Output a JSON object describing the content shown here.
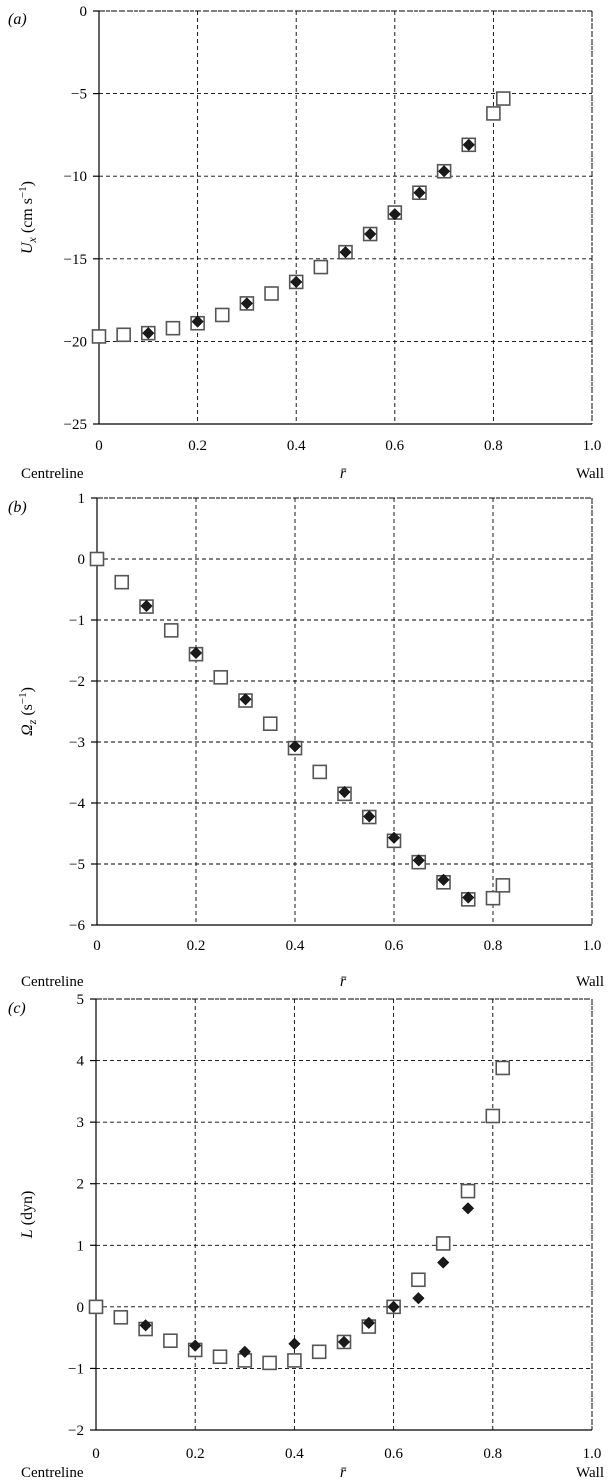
{
  "chart_data": [
    {
      "type": "scatter",
      "panel_label": "(a)",
      "ylabel": "U_x (cm s^-1)",
      "xlabel": "r̄",
      "x_left_text": "Centreline",
      "x_right_text": "Wall",
      "xlim": [
        0,
        1.0
      ],
      "ylim": [
        -25,
        0
      ],
      "xticks": [
        0,
        0.2,
        0.4,
        0.6,
        0.8,
        1.0
      ],
      "xtick_labels": [
        "0",
        "0.2",
        "0.4",
        "0.6",
        "0.8",
        "1.0"
      ],
      "yticks": [
        0,
        -5,
        -10,
        -15,
        -20,
        -25
      ],
      "ytick_labels": [
        "0",
        "−5",
        "−10",
        "−15",
        "−20",
        "−25"
      ],
      "grid": true,
      "series": [
        {
          "marker": "open-square",
          "color": "#000000",
          "x": [
            0,
            0.05,
            0.1,
            0.15,
            0.2,
            0.25,
            0.3,
            0.35,
            0.4,
            0.45,
            0.5,
            0.55,
            0.6,
            0.65,
            0.7,
            0.75,
            0.8,
            0.82
          ],
          "y": [
            -19.7,
            -19.6,
            -19.5,
            -19.2,
            -18.9,
            -18.4,
            -17.7,
            -17.1,
            -16.4,
            -15.5,
            -14.6,
            -13.5,
            -12.2,
            -11.0,
            -9.7,
            -8.1,
            -6.2,
            -5.3
          ]
        },
        {
          "marker": "filled-diamond",
          "color": "#000000",
          "x": [
            0.1,
            0.2,
            0.3,
            0.4,
            0.5,
            0.55,
            0.6,
            0.65,
            0.7,
            0.75
          ],
          "y": [
            -19.5,
            -18.8,
            -17.7,
            -16.4,
            -14.6,
            -13.5,
            -12.3,
            -11.0,
            -9.7,
            -8.1
          ]
        }
      ]
    },
    {
      "type": "scatter",
      "panel_label": "(b)",
      "ylabel": "Ω_z (s^-1)",
      "xlabel": "r̄",
      "x_left_text": "Centreline",
      "x_right_text": "Wall",
      "xlim": [
        0,
        1.0
      ],
      "ylim": [
        -6,
        1
      ],
      "xticks": [
        0,
        0.2,
        0.4,
        0.6,
        0.8,
        1.0
      ],
      "xtick_labels": [
        "0",
        "0.2",
        "0.4",
        "0.6",
        "0.8",
        "1.0"
      ],
      "yticks": [
        1,
        0,
        -1,
        -2,
        -3,
        -4,
        -5,
        -6
      ],
      "ytick_labels": [
        "1",
        "0",
        "−1",
        "−2",
        "−3",
        "−4",
        "−5",
        "−6"
      ],
      "grid": true,
      "series": [
        {
          "marker": "open-square",
          "color": "#000000",
          "x": [
            0,
            0.05,
            0.1,
            0.15,
            0.2,
            0.25,
            0.3,
            0.35,
            0.4,
            0.45,
            0.5,
            0.55,
            0.6,
            0.65,
            0.7,
            0.75,
            0.8,
            0.82
          ],
          "y": [
            0.0,
            -0.38,
            -0.78,
            -1.17,
            -1.56,
            -1.94,
            -2.32,
            -2.7,
            -3.1,
            -3.49,
            -3.85,
            -4.23,
            -4.62,
            -4.97,
            -5.3,
            -5.58,
            -5.56,
            -5.35
          ]
        },
        {
          "marker": "filled-diamond",
          "color": "#000000",
          "x": [
            0.1,
            0.2,
            0.3,
            0.4,
            0.5,
            0.55,
            0.6,
            0.65,
            0.7,
            0.75
          ],
          "y": [
            -0.77,
            -1.54,
            -2.3,
            -3.07,
            -3.82,
            -4.22,
            -4.57,
            -4.94,
            -5.26,
            -5.55
          ]
        }
      ]
    },
    {
      "type": "scatter",
      "panel_label": "(c)",
      "ylabel": "L (dyn)",
      "xlabel": "r̄",
      "x_left_text": "Centreline",
      "x_right_text": "Wall",
      "xlim": [
        0,
        1.0
      ],
      "ylim": [
        -2,
        5
      ],
      "xticks": [
        0,
        0.2,
        0.4,
        0.6,
        0.8,
        1.0
      ],
      "xtick_labels": [
        "0",
        "0.2",
        "0.4",
        "0.6",
        "0.8",
        "1.0"
      ],
      "yticks": [
        5,
        4,
        3,
        2,
        1,
        0,
        -1,
        -2
      ],
      "ytick_labels": [
        "5",
        "4",
        "3",
        "2",
        "1",
        "0",
        "−1",
        "−2"
      ],
      "grid": true,
      "series": [
        {
          "marker": "open-square",
          "color": "#000000",
          "x": [
            0,
            0.05,
            0.1,
            0.15,
            0.2,
            0.25,
            0.3,
            0.35,
            0.4,
            0.45,
            0.5,
            0.55,
            0.6,
            0.65,
            0.7,
            0.75,
            0.8,
            0.82
          ],
          "y": [
            0.0,
            -0.17,
            -0.36,
            -0.55,
            -0.7,
            -0.81,
            -0.87,
            -0.91,
            -0.87,
            -0.73,
            -0.57,
            -0.32,
            0.0,
            0.44,
            1.03,
            1.88,
            3.1,
            3.88
          ]
        },
        {
          "marker": "filled-diamond",
          "color": "#000000",
          "x": [
            0.1,
            0.2,
            0.3,
            0.4,
            0.5,
            0.55,
            0.6,
            0.65,
            0.7,
            0.75
          ],
          "y": [
            -0.3,
            -0.63,
            -0.73,
            -0.6,
            -0.57,
            -0.26,
            0.0,
            0.14,
            0.72,
            1.6
          ]
        }
      ]
    }
  ]
}
